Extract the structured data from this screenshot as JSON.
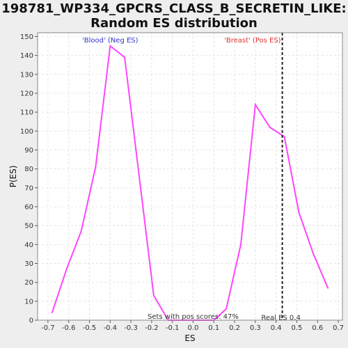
{
  "title_line1": "198781_WP334_GPCRS_CLASS_B_SECRETIN_LIKE:",
  "title_line2": "Random ES distribution",
  "chart_data": {
    "type": "line",
    "xlabel": "ES",
    "ylabel": "P(ES)",
    "xlim": [
      -0.75,
      0.72
    ],
    "ylim": [
      0,
      152
    ],
    "xticks": [
      -0.7,
      -0.6,
      -0.5,
      -0.4,
      -0.3,
      -0.2,
      -0.1,
      0.0,
      0.1,
      0.2,
      0.3,
      0.4,
      0.5,
      0.6,
      0.7
    ],
    "xtick_labels": [
      "-0.7",
      "-0.6",
      "-0.5",
      "-0.4",
      "-0.3",
      "-0.2",
      "-0.1",
      "0.0",
      "0.1",
      "0.2",
      "0.3",
      "0.4",
      "0.5",
      "0.6",
      "0.7"
    ],
    "yticks": [
      0,
      10,
      20,
      30,
      40,
      50,
      60,
      70,
      80,
      90,
      100,
      110,
      120,
      130,
      140,
      150
    ],
    "ytick_labels": [
      "0",
      "10",
      "20",
      "30",
      "40",
      "50",
      "60",
      "70",
      "80",
      "90",
      "100",
      "110",
      "120",
      "130",
      "140",
      "150"
    ],
    "grid": true,
    "series": [
      {
        "color": "#ff44ff",
        "x": [
          -0.68,
          -0.61,
          -0.54,
          -0.47,
          -0.4,
          -0.33,
          -0.26,
          -0.19,
          -0.12,
          -0.05,
          0.03,
          0.1,
          0.16,
          0.23,
          0.3,
          0.37,
          0.44,
          0.51,
          0.58,
          0.65
        ],
        "y": [
          4,
          27,
          47,
          81,
          145,
          139,
          76,
          13,
          0,
          0,
          0,
          0,
          6,
          40,
          114,
          102,
          97,
          57,
          35,
          17
        ]
      }
    ],
    "vline": {
      "x": 0.43,
      "style": "dashed",
      "color": "#222222"
    },
    "annotations": {
      "neg_label": "'Blood' (Neg ES)",
      "neg_color": "#3333cc",
      "pos_label": "'Breast' (Pos ES)",
      "pos_color": "#dd3333",
      "pos_scores": "Sets with pos scores: 47%",
      "real_es": "Real ES 0.4"
    }
  }
}
